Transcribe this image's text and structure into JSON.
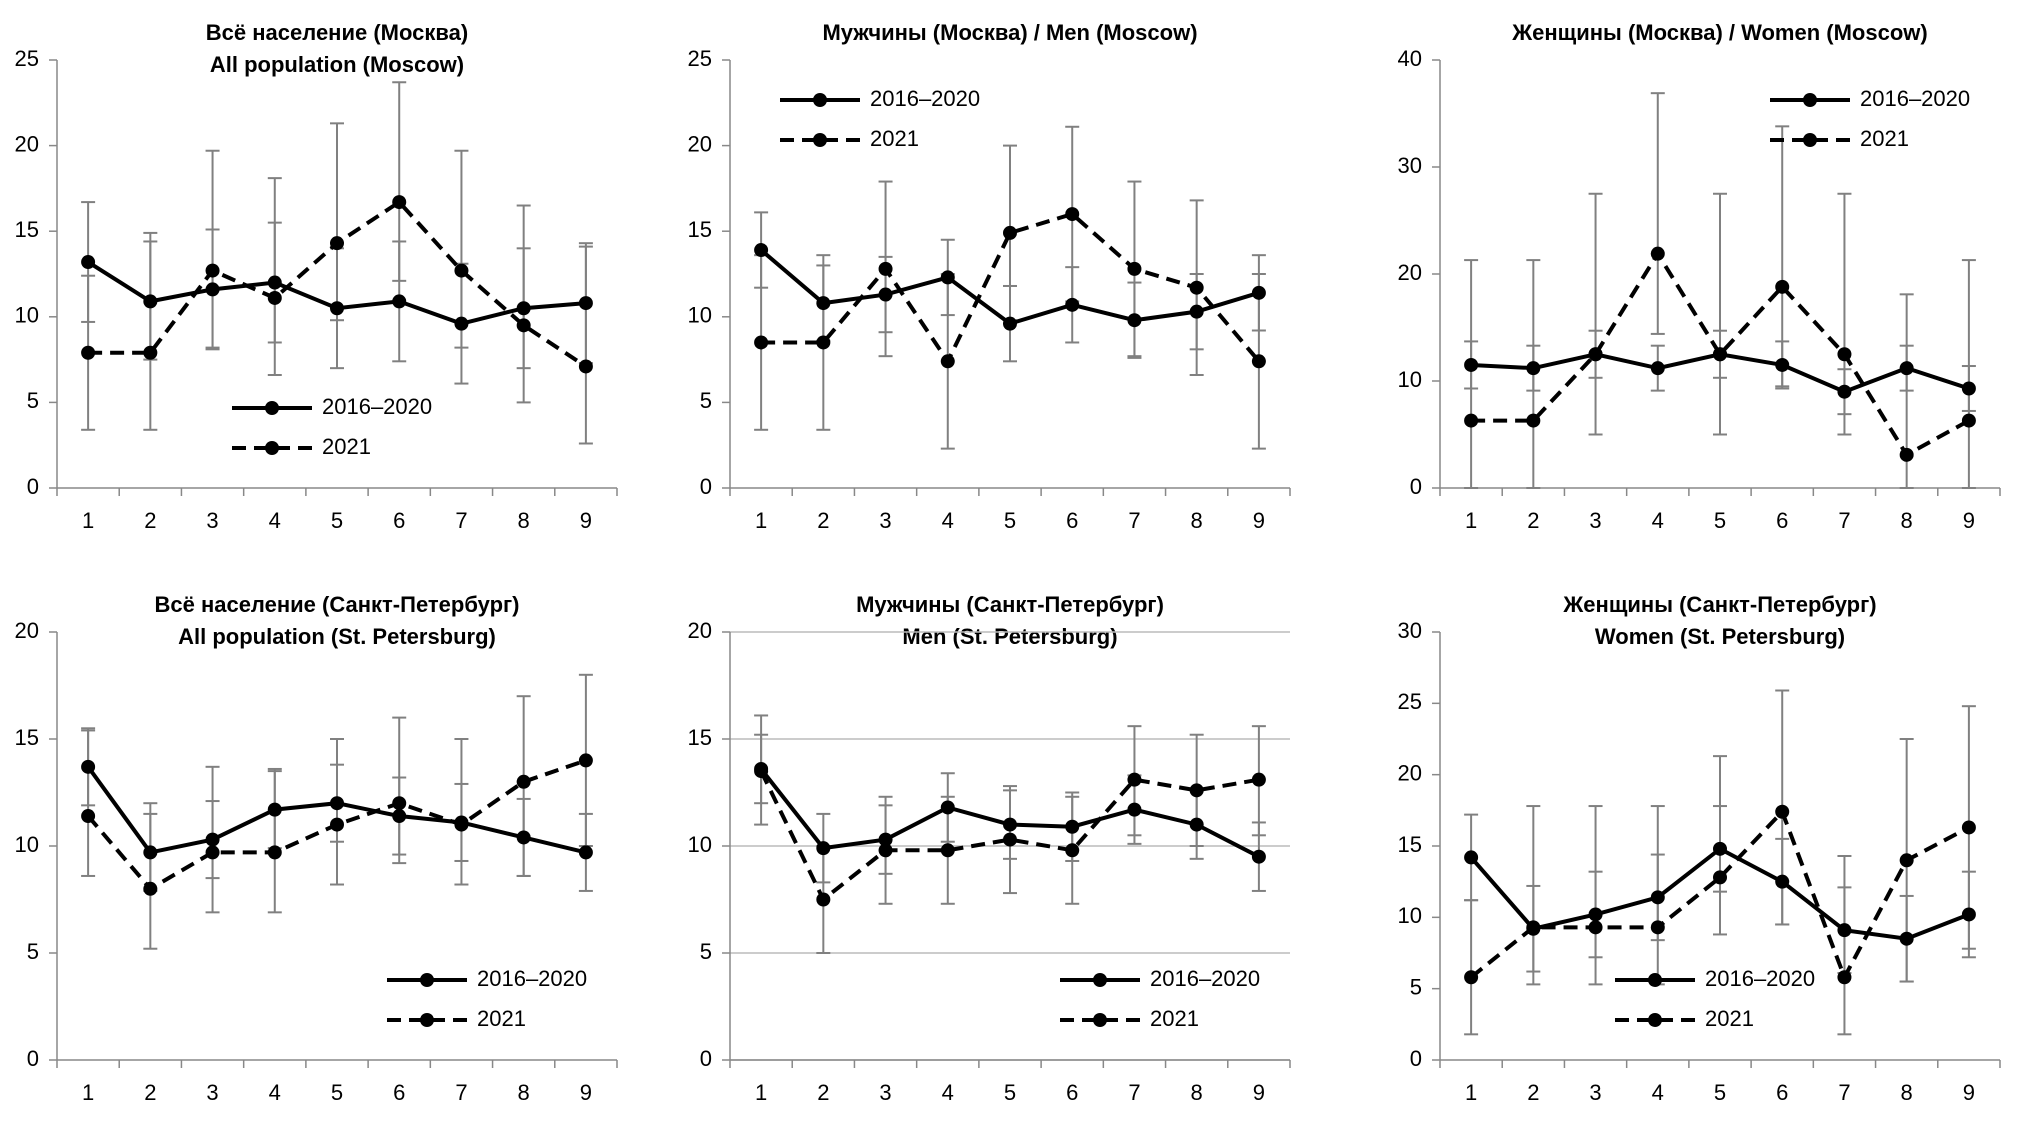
{
  "chart_data": [
    {
      "type": "line",
      "title": [
        "Всё население (Москва)",
        "All population (Moscow)"
      ],
      "categories": [
        "1",
        "2",
        "3",
        "4",
        "5",
        "6",
        "7",
        "8",
        "9"
      ],
      "ylim": [
        0,
        25
      ],
      "yticks": [
        0,
        5,
        10,
        15,
        20,
        25
      ],
      "grid": false,
      "legend_position": "bottom-center",
      "series": [
        {
          "name": "2016–2020",
          "color": "#000000",
          "line_style": "solid",
          "values": [
            13.2,
            10.9,
            11.6,
            12.0,
            10.5,
            10.9,
            9.6,
            10.5,
            10.8
          ],
          "lower": [
            9.7,
            7.5,
            8.2,
            8.5,
            7.0,
            7.4,
            6.1,
            7.0,
            7.3
          ],
          "upper": [
            16.7,
            14.4,
            15.1,
            15.5,
            14.0,
            14.4,
            13.1,
            14.0,
            14.3
          ]
        },
        {
          "name": "2021",
          "color": "#000000",
          "line_style": "dashed",
          "values": [
            7.9,
            7.9,
            12.7,
            11.1,
            14.3,
            16.7,
            12.7,
            9.5,
            7.1
          ],
          "lower": [
            3.4,
            3.4,
            8.1,
            6.6,
            9.8,
            12.1,
            8.2,
            5.0,
            2.6
          ],
          "upper": [
            12.4,
            14.9,
            19.7,
            18.1,
            21.3,
            23.7,
            19.7,
            16.5,
            14.1
          ]
        }
      ]
    },
    {
      "type": "line",
      "title": [
        "Мужчины (Москва) / Men (Moscow)"
      ],
      "categories": [
        "1",
        "2",
        "3",
        "4",
        "5",
        "6",
        "7",
        "8",
        "9"
      ],
      "ylim": [
        0,
        25
      ],
      "yticks": [
        0,
        5,
        10,
        15,
        20,
        25
      ],
      "grid": false,
      "legend_position": "top-left",
      "series": [
        {
          "name": "2016–2020",
          "color": "#000000",
          "line_style": "solid",
          "values": [
            13.9,
            10.8,
            11.3,
            12.3,
            9.6,
            10.7,
            9.8,
            10.3,
            11.4
          ],
          "lower": [
            11.7,
            8.6,
            9.1,
            10.1,
            7.4,
            8.5,
            7.6,
            8.1,
            9.2
          ],
          "upper": [
            16.1,
            13.0,
            13.5,
            14.5,
            11.8,
            12.9,
            12.0,
            12.5,
            13.6
          ]
        },
        {
          "name": "2021",
          "color": "#000000",
          "line_style": "dashed",
          "values": [
            8.5,
            8.5,
            12.8,
            7.4,
            14.9,
            16.0,
            12.8,
            11.7,
            7.4
          ],
          "lower": [
            3.4,
            3.4,
            7.7,
            2.3,
            9.8,
            10.9,
            7.7,
            6.6,
            2.3
          ],
          "upper": [
            13.6,
            13.6,
            17.9,
            12.5,
            20.0,
            21.1,
            17.9,
            16.8,
            12.5
          ]
        }
      ]
    },
    {
      "type": "line",
      "title": [
        "Женщины (Москва) / Women (Moscow)"
      ],
      "categories": [
        "1",
        "2",
        "3",
        "4",
        "5",
        "6",
        "7",
        "8",
        "9"
      ],
      "ylim": [
        0,
        40
      ],
      "yticks": [
        0,
        10,
        20,
        30,
        40
      ],
      "grid": false,
      "legend_position": "top-right",
      "series": [
        {
          "name": "2016–2020",
          "color": "#000000",
          "line_style": "solid",
          "values": [
            11.5,
            11.2,
            12.5,
            11.2,
            12.5,
            11.5,
            9.0,
            11.2,
            9.3
          ],
          "lower": [
            9.3,
            9.1,
            10.3,
            9.1,
            10.3,
            9.3,
            6.9,
            9.1,
            7.2
          ],
          "upper": [
            13.7,
            13.3,
            14.7,
            13.3,
            14.7,
            13.7,
            11.1,
            13.3,
            11.4
          ]
        },
        {
          "name": "2021",
          "color": "#000000",
          "line_style": "dashed",
          "values": [
            6.3,
            6.3,
            12.5,
            21.9,
            12.5,
            18.8,
            12.5,
            3.1,
            6.3
          ],
          "lower": [
            0,
            0,
            5.0,
            14.4,
            5.0,
            9.5,
            5.0,
            0,
            0
          ],
          "upper": [
            21.3,
            21.3,
            27.5,
            36.9,
            27.5,
            33.8,
            27.5,
            18.1,
            21.3
          ]
        }
      ]
    },
    {
      "type": "line",
      "title": [
        "Всё население (Санкт-Петербург)",
        "All population (St. Petersburg)"
      ],
      "categories": [
        "1",
        "2",
        "3",
        "4",
        "5",
        "6",
        "7",
        "8",
        "9"
      ],
      "ylim": [
        0,
        20
      ],
      "yticks": [
        0,
        5,
        10,
        15,
        20
      ],
      "grid": false,
      "legend_position": "bottom-right",
      "series": [
        {
          "name": "2016–2020",
          "color": "#000000",
          "line_style": "solid",
          "values": [
            13.7,
            9.7,
            10.3,
            11.7,
            12.0,
            11.4,
            11.1,
            10.4,
            9.7
          ],
          "lower": [
            11.9,
            7.9,
            8.5,
            9.9,
            10.2,
            9.6,
            9.3,
            8.6,
            7.9
          ],
          "upper": [
            15.5,
            11.5,
            12.1,
            13.5,
            13.8,
            13.2,
            12.9,
            12.2,
            11.5
          ]
        },
        {
          "name": "2021",
          "color": "#000000",
          "line_style": "dashed",
          "values": [
            11.4,
            8.0,
            9.7,
            9.7,
            11.0,
            12.0,
            11.0,
            13.0,
            14.0
          ],
          "lower": [
            8.6,
            5.2,
            6.9,
            6.9,
            8.2,
            9.2,
            8.2,
            8.6,
            10.0
          ],
          "upper": [
            15.4,
            12.0,
            13.7,
            13.6,
            15.0,
            16.0,
            15.0,
            17.0,
            18.0
          ]
        }
      ]
    },
    {
      "type": "line",
      "title": [
        "Мужчины (Санкт-Петербург)",
        "Men (St. Petersburg)"
      ],
      "categories": [
        "1",
        "2",
        "3",
        "4",
        "5",
        "6",
        "7",
        "8",
        "9"
      ],
      "ylim": [
        0,
        20
      ],
      "yticks": [
        0,
        5,
        10,
        15,
        20
      ],
      "grid": true,
      "legend_position": "bottom-right",
      "series": [
        {
          "name": "2016–2020",
          "color": "#000000",
          "line_style": "solid",
          "values": [
            13.6,
            9.9,
            10.3,
            11.8,
            11.0,
            10.9,
            11.7,
            11.0,
            9.5
          ],
          "lower": [
            12.0,
            8.3,
            8.7,
            10.2,
            9.4,
            9.3,
            10.1,
            9.4,
            7.9
          ],
          "upper": [
            15.2,
            11.5,
            11.9,
            13.4,
            12.6,
            12.5,
            13.3,
            12.6,
            11.1
          ]
        },
        {
          "name": "2021",
          "color": "#000000",
          "line_style": "dashed",
          "values": [
            13.5,
            7.5,
            9.8,
            9.8,
            10.3,
            9.8,
            13.1,
            12.6,
            13.1
          ],
          "lower": [
            11.0,
            5.0,
            7.3,
            7.3,
            7.8,
            7.3,
            10.5,
            10.0,
            10.5
          ],
          "upper": [
            16.1,
            10.0,
            12.3,
            12.3,
            12.8,
            12.3,
            15.6,
            15.2,
            15.6
          ]
        }
      ]
    },
    {
      "type": "line",
      "title": [
        "Женщины (Санкт-Петербург)",
        "Women (St. Petersburg)"
      ],
      "categories": [
        "1",
        "2",
        "3",
        "4",
        "5",
        "6",
        "7",
        "8",
        "9"
      ],
      "ylim": [
        0,
        30
      ],
      "yticks": [
        0,
        5,
        10,
        15,
        20,
        25,
        30
      ],
      "grid": false,
      "legend_position": "bottom-center",
      "series": [
        {
          "name": "2016–2020",
          "color": "#000000",
          "line_style": "solid",
          "values": [
            14.2,
            9.2,
            10.2,
            11.4,
            14.8,
            12.5,
            9.1,
            8.5,
            10.2
          ],
          "lower": [
            11.2,
            6.2,
            7.2,
            8.4,
            11.8,
            9.5,
            6.1,
            5.5,
            7.2
          ],
          "upper": [
            17.2,
            12.2,
            13.2,
            14.4,
            17.8,
            15.5,
            12.1,
            11.5,
            13.2
          ]
        },
        {
          "name": "2021",
          "color": "#000000",
          "line_style": "dashed",
          "values": [
            5.8,
            9.3,
            9.3,
            9.3,
            12.8,
            17.4,
            5.8,
            14.0,
            16.3
          ],
          "lower": [
            1.8,
            5.3,
            5.3,
            5.3,
            8.8,
            9.5,
            1.8,
            5.5,
            7.8
          ],
          "upper": [
            11.2,
            17.8,
            17.8,
            17.8,
            21.3,
            25.9,
            14.3,
            22.5,
            24.8
          ]
        }
      ]
    }
  ]
}
